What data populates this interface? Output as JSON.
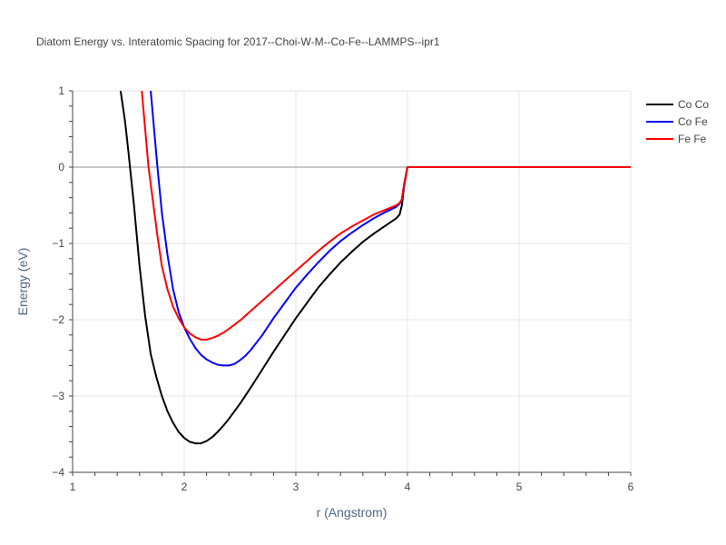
{
  "chart_data": {
    "type": "line",
    "title": "Diatom Energy vs. Interatomic Spacing for 2017--Choi-W-M--Co-Fe--LAMMPS--ipr1",
    "xlabel": "r (Angstrom)",
    "ylabel": "Energy (eV)",
    "xlim": [
      1,
      6
    ],
    "ylim": [
      -4,
      1
    ],
    "xticks": [
      1,
      2,
      3,
      4,
      5,
      6
    ],
    "xtick_labels": [
      "1",
      "2",
      "3",
      "4",
      "5",
      "6"
    ],
    "yticks": [
      -4,
      -3,
      -2,
      -1,
      0,
      1
    ],
    "ytick_labels": [
      "−4",
      "−3",
      "−2",
      "−1",
      "0",
      "1"
    ],
    "grid": true,
    "legend_position": "top-right",
    "series": [
      {
        "name": "Co Co",
        "color": "#000000",
        "x": [
          1.43,
          1.47,
          1.5,
          1.55,
          1.6,
          1.65,
          1.7,
          1.75,
          1.8,
          1.85,
          1.9,
          1.95,
          2.0,
          2.05,
          2.1,
          2.15,
          2.2,
          2.25,
          2.3,
          2.35,
          2.4,
          2.45,
          2.5,
          2.6,
          2.7,
          2.8,
          2.9,
          3.0,
          3.1,
          3.2,
          3.3,
          3.4,
          3.5,
          3.6,
          3.7,
          3.8,
          3.9,
          3.93,
          3.95,
          3.97,
          4.0,
          4.5,
          5.0,
          5.5,
          6.0
        ],
        "y": [
          1.0,
          0.6,
          0.2,
          -0.5,
          -1.3,
          -1.95,
          -2.45,
          -2.75,
          -3.0,
          -3.2,
          -3.35,
          -3.47,
          -3.55,
          -3.6,
          -3.62,
          -3.62,
          -3.59,
          -3.54,
          -3.47,
          -3.39,
          -3.3,
          -3.2,
          -3.1,
          -2.88,
          -2.65,
          -2.42,
          -2.2,
          -1.98,
          -1.78,
          -1.58,
          -1.41,
          -1.25,
          -1.11,
          -0.98,
          -0.87,
          -0.77,
          -0.67,
          -0.62,
          -0.5,
          -0.25,
          0.0,
          0.0,
          0.0,
          0.0,
          0.0
        ]
      },
      {
        "name": "Co Fe",
        "color": "#0000ff",
        "x": [
          1.7,
          1.73,
          1.76,
          1.8,
          1.85,
          1.9,
          1.95,
          2.0,
          2.05,
          2.1,
          2.15,
          2.2,
          2.25,
          2.3,
          2.35,
          2.4,
          2.45,
          2.5,
          2.55,
          2.6,
          2.7,
          2.8,
          2.9,
          3.0,
          3.1,
          3.2,
          3.3,
          3.4,
          3.5,
          3.6,
          3.7,
          3.8,
          3.9,
          3.93,
          3.95,
          3.97,
          4.0,
          4.5,
          5.0,
          5.5,
          6.0
        ],
        "y": [
          1.0,
          0.5,
          0.0,
          -0.6,
          -1.15,
          -1.6,
          -1.9,
          -2.1,
          -2.25,
          -2.37,
          -2.46,
          -2.52,
          -2.56,
          -2.59,
          -2.6,
          -2.6,
          -2.58,
          -2.53,
          -2.47,
          -2.39,
          -2.2,
          -1.98,
          -1.78,
          -1.58,
          -1.41,
          -1.25,
          -1.1,
          -0.97,
          -0.86,
          -0.76,
          -0.67,
          -0.59,
          -0.52,
          -0.48,
          -0.42,
          -0.22,
          0.0,
          0.0,
          0.0,
          0.0,
          0.0
        ]
      },
      {
        "name": "Fe Fe",
        "color": "#ff0000",
        "x": [
          1.62,
          1.65,
          1.68,
          1.72,
          1.76,
          1.8,
          1.85,
          1.9,
          1.95,
          2.0,
          2.05,
          2.1,
          2.15,
          2.2,
          2.25,
          2.3,
          2.35,
          2.4,
          2.5,
          2.6,
          2.7,
          2.8,
          2.9,
          3.0,
          3.1,
          3.2,
          3.3,
          3.4,
          3.5,
          3.6,
          3.7,
          3.8,
          3.9,
          3.93,
          3.95,
          3.97,
          4.0,
          4.5,
          5.0,
          5.5,
          6.0
        ],
        "y": [
          1.0,
          0.5,
          0.0,
          -0.45,
          -0.9,
          -1.3,
          -1.6,
          -1.83,
          -1.98,
          -2.1,
          -2.18,
          -2.23,
          -2.26,
          -2.26,
          -2.24,
          -2.21,
          -2.17,
          -2.12,
          -2.01,
          -1.88,
          -1.75,
          -1.62,
          -1.49,
          -1.36,
          -1.23,
          -1.1,
          -0.98,
          -0.87,
          -0.78,
          -0.7,
          -0.62,
          -0.56,
          -0.5,
          -0.47,
          -0.42,
          -0.22,
          0.0,
          0.0,
          0.0,
          0.0,
          0.0
        ]
      }
    ]
  }
}
